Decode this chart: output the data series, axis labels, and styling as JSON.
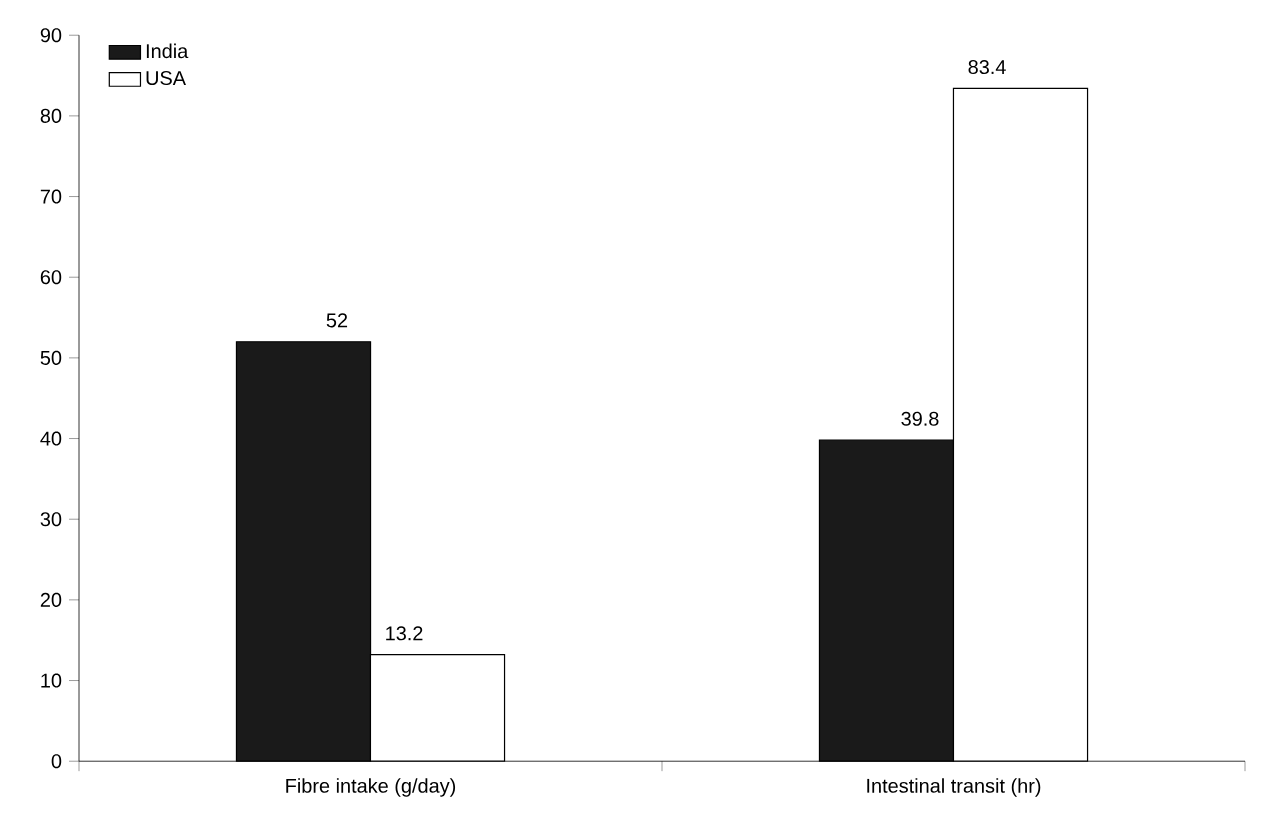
{
  "chart_data": {
    "type": "bar",
    "categories": [
      "Fibre intake (g/day)",
      "Intestinal transit (hr)"
    ],
    "series": [
      {
        "name": "India",
        "color": "#1a1a1a",
        "values": [
          52,
          39.8
        ]
      },
      {
        "name": "USA",
        "color": "#ffffff",
        "values": [
          13.2,
          83.4
        ]
      }
    ],
    "ylim": [
      0,
      90
    ],
    "yticks": [
      0,
      10,
      20,
      30,
      40,
      50,
      60,
      70,
      80,
      90
    ],
    "data_labels": true,
    "legend": "top left",
    "grid": false
  }
}
